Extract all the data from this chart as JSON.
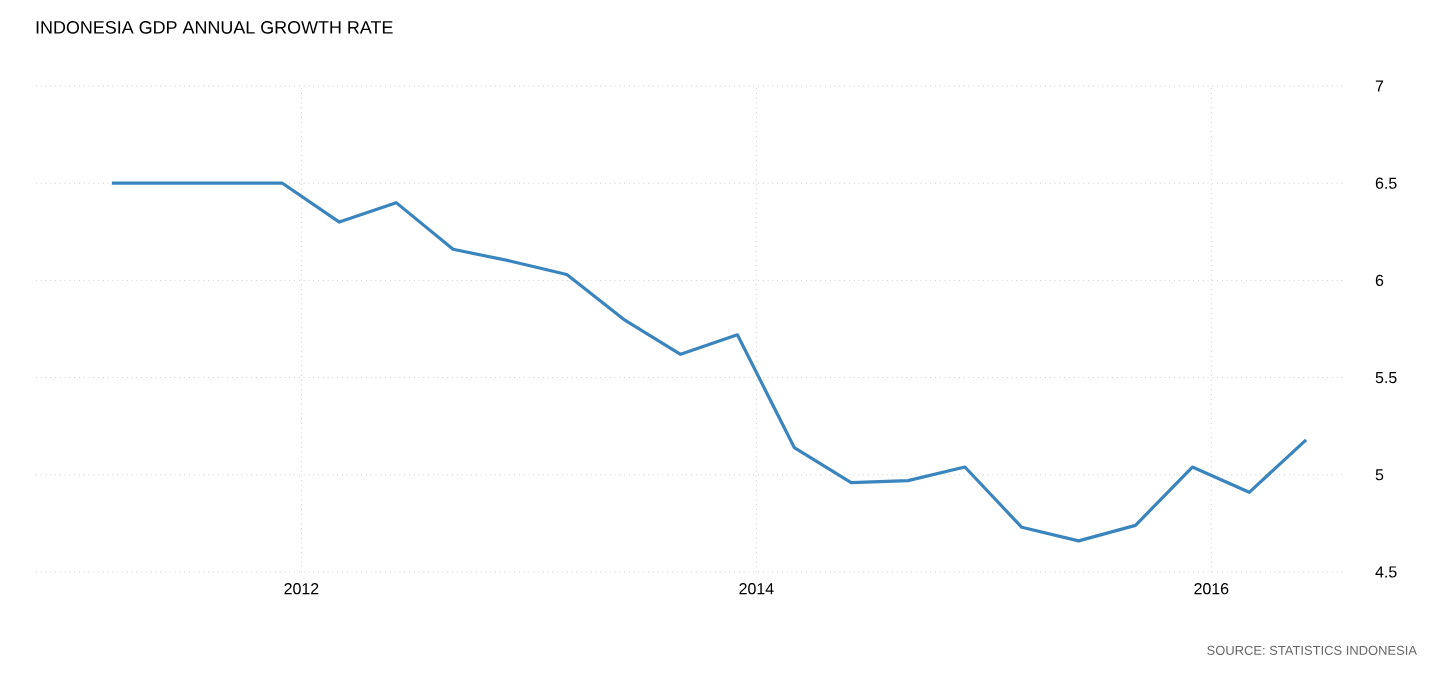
{
  "chart_data": {
    "type": "line",
    "title": "INDONESIA GDP ANNUAL GROWTH RATE",
    "annotations": [
      "SOURCE: STATISTICS INDONESIA"
    ],
    "x": [
      "2011-03",
      "2011-06",
      "2011-09",
      "2011-12",
      "2012-03",
      "2012-06",
      "2012-09",
      "2012-12",
      "2013-03",
      "2013-06",
      "2013-09",
      "2013-12",
      "2014-03",
      "2014-06",
      "2014-09",
      "2014-12",
      "2015-03",
      "2015-06",
      "2015-09",
      "2015-12",
      "2016-03",
      "2016-06"
    ],
    "series": [
      {
        "color": "#3a85bd",
        "values": [
          6.5,
          6.5,
          6.5,
          6.5,
          6.3,
          6.4,
          6.16,
          6.1,
          6.03,
          5.8,
          5.62,
          5.72,
          5.14,
          4.96,
          4.97,
          5.04,
          4.73,
          4.66,
          4.74,
          5.04,
          4.91,
          5.18
        ]
      }
    ],
    "xlim": [
      "2010-11",
      "2016-08"
    ],
    "xticks": [
      {
        "value": "2012-01",
        "label": "2012"
      },
      {
        "value": "2014-01",
        "label": "2014"
      },
      {
        "value": "2016-01",
        "label": "2016"
      }
    ],
    "ylim": [
      4.5,
      7
    ],
    "yticks": [
      4.5,
      5,
      5.5,
      6,
      6.5,
      7
    ],
    "grid": true,
    "marker": "none",
    "line_style": "solid"
  }
}
